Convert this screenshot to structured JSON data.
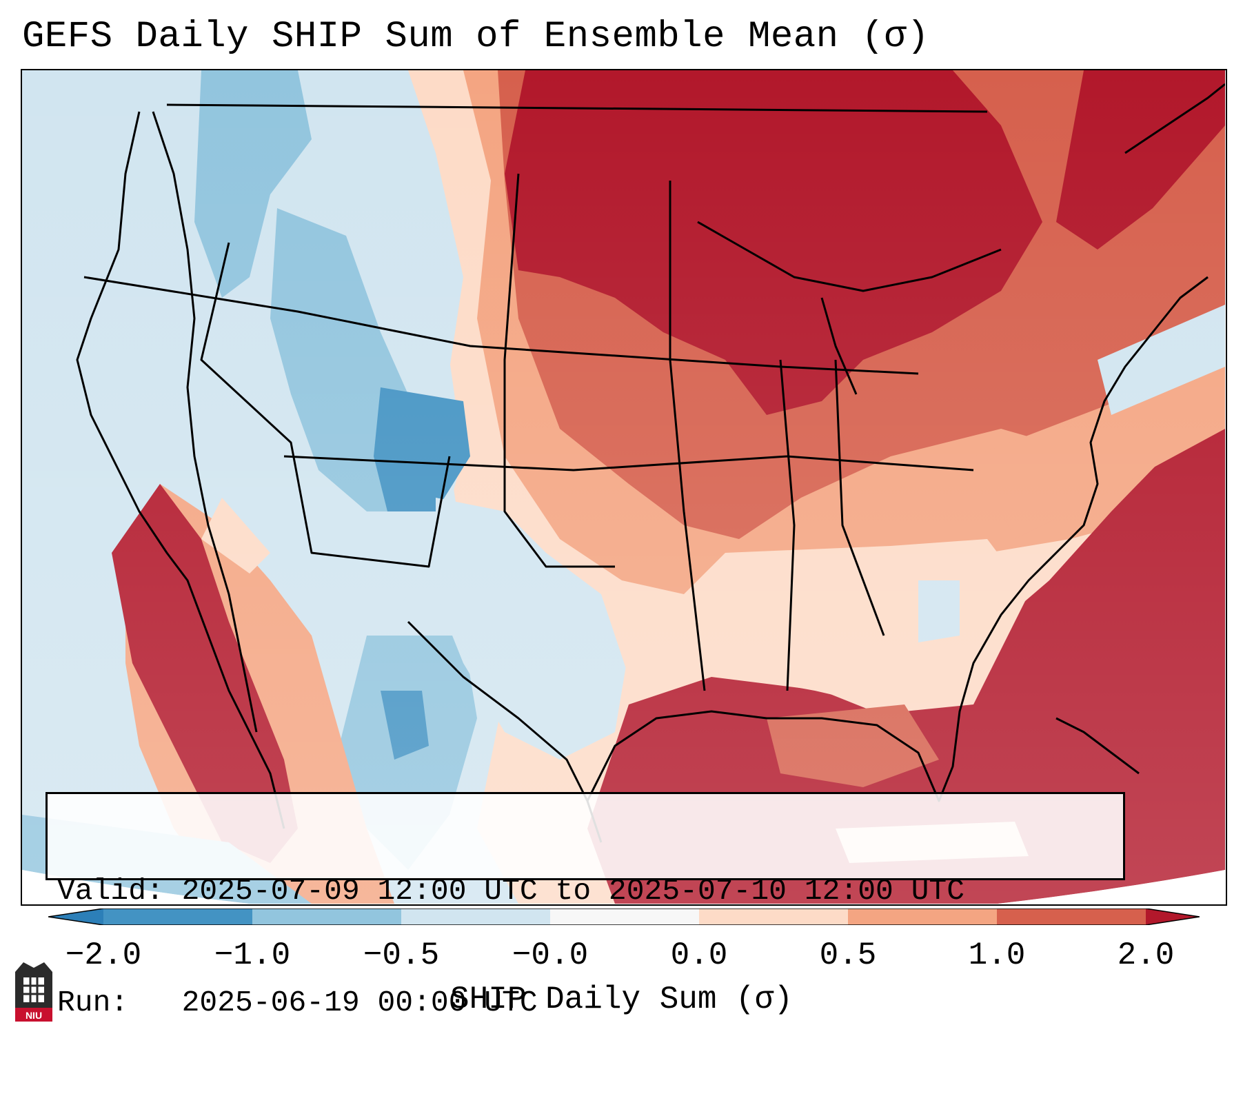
{
  "title": "GEFS Daily SHIP Sum of Ensemble Mean (σ)",
  "info": {
    "valid_line": "Valid: 2025-07-09 12:00 UTC to 2025-07-10 12:00 UTC",
    "run_line": "Run:   2025-06-19 00:00 UTC"
  },
  "colorbar": {
    "label": "SHIP Daily Sum (σ)",
    "ticks": [
      "−2.0",
      "−1.0",
      "−0.5",
      "−0.0",
      "0.0",
      "0.5",
      "1.0",
      "2.0"
    ],
    "bins": [
      {
        "color": "#2c7fb8",
        "range": "< -2.0"
      },
      {
        "color": "#4393c3",
        "range": "-2.0 to -1.0"
      },
      {
        "color": "#92c5de",
        "range": "-1.0 to -0.5"
      },
      {
        "color": "#d1e5f0",
        "range": "-0.5 to 0.0"
      },
      {
        "color": "#f7f7f7",
        "range": "0.0"
      },
      {
        "color": "#fddbc7",
        "range": "0.0 to 0.5"
      },
      {
        "color": "#f4a582",
        "range": "0.5 to 1.0"
      },
      {
        "color": "#d6604d",
        "range": "1.0 to 2.0"
      },
      {
        "color": "#b2182b",
        "range": "> 2.0"
      }
    ]
  },
  "map": {
    "region": "Contiguous United States",
    "field": "SHIP daily sum anomaly",
    "pattern": [
      {
        "area": "West Coast / Pacific NW / Great Basin",
        "category": "-0.5 to 0.0"
      },
      {
        "area": "Idaho / Utah / Colorado",
        "category": "-1.0 to -0.5"
      },
      {
        "area": "Colorado core",
        "category": "-2.0 to -1.0"
      },
      {
        "area": "Southern California / Baja / Gulf of California",
        "category": "> 2.0"
      },
      {
        "area": "Northern Plains / Upper Midwest / Great Lakes",
        "category": "> 2.0"
      },
      {
        "area": "Central Plains / Ohio Valley",
        "category": "1.0 to 2.0"
      },
      {
        "area": "Southeast / Carolinas",
        "category": "0.0 to 0.5"
      },
      {
        "area": "Texas",
        "category": "-0.5 to 0.0"
      },
      {
        "area": "Gulf of Mexico / Atlantic / Florida",
        "category": "> 2.0"
      }
    ]
  },
  "logo": {
    "text": "NIU",
    "color": "#c8102e"
  }
}
